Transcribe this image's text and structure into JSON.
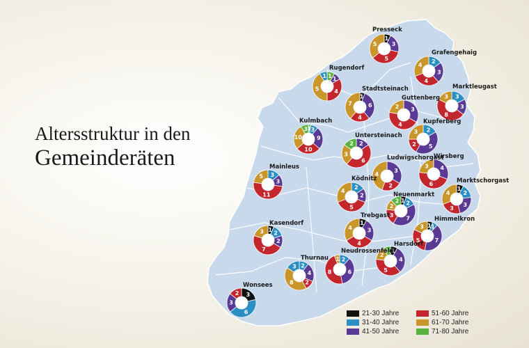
{
  "title": {
    "line1": "Altersstruktur in den",
    "line2": "Gemeinderäten"
  },
  "colors": {
    "21-30": "#111111",
    "31-40": "#2b8fc4",
    "41-50": "#5a3a94",
    "51-60": "#c4262e",
    "61-70": "#c8962a",
    "71-80": "#58b33e",
    "map_fill": "#c7d9eb",
    "border": "#ffffff"
  },
  "legend": [
    {
      "key": "21-30",
      "label": "21-30 Jahre"
    },
    {
      "key": "51-60",
      "label": "51-60 Jahre"
    },
    {
      "key": "31-40",
      "label": "31-40 Jahre"
    },
    {
      "key": "61-70",
      "label": "61-70 Jahre"
    },
    {
      "key": "41-50",
      "label": "41-50 Jahre"
    },
    {
      "key": "71-80",
      "label": "71-80 Jahre"
    }
  ],
  "municipalities": [
    {
      "name": "Presseck",
      "segments": [
        [
          "21-30",
          1
        ],
        [
          "41-50",
          3
        ],
        [
          "51-60",
          5
        ],
        [
          "61-70",
          5
        ]
      ]
    },
    {
      "name": "Grafengehaig",
      "segments": [
        [
          "31-40",
          2
        ],
        [
          "41-50",
          3
        ],
        [
          "51-60",
          4
        ],
        [
          "61-70",
          4
        ]
      ]
    },
    {
      "name": "Rugendorf",
      "segments": [
        [
          "71-80",
          1
        ],
        [
          "41-50",
          1
        ],
        [
          "51-60",
          4
        ],
        [
          "61-70",
          5
        ],
        [
          "31-40",
          1
        ]
      ]
    },
    {
      "name": "Marktleugast",
      "segments": [
        [
          "31-40",
          3
        ],
        [
          "41-50",
          3
        ],
        [
          "51-60",
          8
        ],
        [
          "61-70",
          3
        ]
      ]
    },
    {
      "name": "Stadtsteinach",
      "segments": [
        [
          "21-30",
          1
        ],
        [
          "41-50",
          6
        ],
        [
          "51-60",
          4
        ],
        [
          "61-70",
          7
        ]
      ]
    },
    {
      "name": "Guttenberg",
      "segments": [
        [
          "41-50",
          3
        ],
        [
          "51-60",
          4
        ],
        [
          "61-70",
          2
        ]
      ]
    },
    {
      "name": "Kulmbach",
      "segments": [
        [
          "71-80",
          1
        ],
        [
          "31-40",
          3
        ],
        [
          "41-50",
          9
        ],
        [
          "51-60",
          10
        ],
        [
          "61-70",
          10
        ],
        [
          "71-80",
          3
        ]
      ]
    },
    {
      "name": "Kupferberg",
      "segments": [
        [
          "31-40",
          2
        ],
        [
          "41-50",
          5
        ],
        [
          "51-60",
          2
        ],
        [
          "61-70",
          3
        ]
      ]
    },
    {
      "name": "Untersteinach",
      "segments": [
        [
          "41-50",
          2
        ],
        [
          "51-60",
          6
        ],
        [
          "61-70",
          3
        ],
        [
          "71-80",
          2
        ]
      ]
    },
    {
      "name": "Wirsberg",
      "segments": [
        [
          "41-50",
          4
        ],
        [
          "51-60",
          6
        ],
        [
          "61-70",
          3
        ]
      ]
    },
    {
      "name": "Ludwigschorgast",
      "segments": [
        [
          "41-50",
          3
        ],
        [
          "51-60",
          2
        ],
        [
          "61-70",
          4
        ]
      ]
    },
    {
      "name": "Mainleus",
      "segments": [
        [
          "31-40",
          3
        ],
        [
          "41-50",
          3
        ],
        [
          "51-60",
          11
        ],
        [
          "61-70",
          5
        ]
      ]
    },
    {
      "name": "Marktschorgast",
      "segments": [
        [
          "21-30",
          1
        ],
        [
          "31-40",
          2
        ],
        [
          "41-50",
          3
        ],
        [
          "51-60",
          3
        ],
        [
          "61-70",
          4
        ]
      ]
    },
    {
      "name": "Ködnitz",
      "segments": [
        [
          "31-40",
          2
        ],
        [
          "41-50",
          2
        ],
        [
          "51-60",
          5
        ],
        [
          "61-70",
          4
        ]
      ]
    },
    {
      "name": "Neuenmarkt",
      "segments": [
        [
          "21-30",
          1
        ],
        [
          "31-40",
          2
        ],
        [
          "41-50",
          7
        ],
        [
          "51-60",
          3
        ],
        [
          "61-70",
          2
        ],
        [
          "71-80",
          2
        ]
      ]
    },
    {
      "name": "Kasendorf",
      "segments": [
        [
          "21-30",
          1
        ],
        [
          "31-40",
          2
        ],
        [
          "41-50",
          2
        ],
        [
          "51-60",
          7
        ],
        [
          "61-70",
          3
        ]
      ]
    },
    {
      "name": "Trebgast",
      "segments": [
        [
          "21-30",
          1
        ],
        [
          "41-50",
          3
        ],
        [
          "51-60",
          4
        ],
        [
          "61-70",
          4
        ]
      ]
    },
    {
      "name": "Himmelkron",
      "segments": [
        [
          "21-30",
          1
        ],
        [
          "31-40",
          1
        ],
        [
          "41-50",
          7
        ],
        [
          "51-60",
          5
        ],
        [
          "61-70",
          3
        ]
      ]
    },
    {
      "name": "Harsdorf",
      "segments": [
        [
          "21-30",
          1
        ],
        [
          "41-50",
          4
        ],
        [
          "51-60",
          5
        ],
        [
          "61-70",
          2
        ],
        [
          "71-80",
          1
        ]
      ]
    },
    {
      "name": "Neudrossenfeld",
      "segments": [
        [
          "31-40",
          2
        ],
        [
          "41-50",
          6
        ],
        [
          "51-60",
          8
        ],
        [
          "61-70",
          1
        ]
      ]
    },
    {
      "name": "Thurnau",
      "segments": [
        [
          "31-40",
          2
        ],
        [
          "41-50",
          4
        ],
        [
          "51-60",
          2
        ],
        [
          "61-70",
          8
        ],
        [
          "31-40",
          3
        ]
      ]
    },
    {
      "name": "Wonsees",
      "segments": [
        [
          "21-30",
          3
        ],
        [
          "31-40",
          6
        ],
        [
          "41-50",
          3
        ],
        [
          "51-60",
          2
        ]
      ]
    }
  ]
}
